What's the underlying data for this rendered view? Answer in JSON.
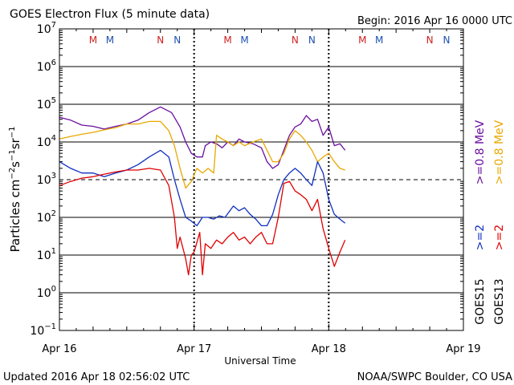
{
  "header": {
    "title": "GOES Electron Flux (5 minute data)",
    "begin": "Begin: 2016 Apr 16 0000 UTC"
  },
  "footer": {
    "updated": "Updated 2016 Apr 18 02:56:02 UTC",
    "credit": "NOAA/SWPC Boulder, CO USA"
  },
  "chart_data": {
    "type": "line",
    "title": "GOES Electron Flux (5 minute data)",
    "xlabel": "Universal Time",
    "ylabel": "Particles cm⁻²s⁻¹sr⁻¹",
    "y_scale": "log",
    "ylim": [
      0.1,
      10000000
    ],
    "xlim": [
      "2016-04-16 00:00",
      "2016-04-19 00:00"
    ],
    "x_ticks": [
      "Apr 16",
      "Apr 17",
      "Apr 18",
      "Apr 19"
    ],
    "y_ticks": [
      {
        "base": "10",
        "exp": "7"
      },
      {
        "base": "10",
        "exp": "6"
      },
      {
        "base": "10",
        "exp": "5"
      },
      {
        "base": "10",
        "exp": "4"
      },
      {
        "base": "10",
        "exp": "3"
      },
      {
        "base": "10",
        "exp": "2"
      },
      {
        "base": "10",
        "exp": "1"
      },
      {
        "base": "10",
        "exp": "0"
      },
      {
        "base": "10",
        "exp": "−1"
      }
    ],
    "grid": true,
    "threshold": {
      "value": 1000,
      "style": "dashed"
    },
    "day_markers": [
      "2016-04-17 00:00",
      "2016-04-18 00:00"
    ],
    "legend": {
      "placement": "right",
      "groups": [
        {
          "satellite": "GOES13",
          "entries": [
            {
              "label": ">=0.8 MeV",
              "color": "#e8a800"
            },
            {
              "label": ">=2",
              "color": "#e00000"
            }
          ]
        },
        {
          "satellite": "GOES15",
          "entries": [
            {
              "label": ">=0.8 MeV",
              "color": "#6a0fa0"
            },
            {
              "label": ">=2",
              "color": "#1030c0"
            }
          ]
        }
      ]
    },
    "mn_markers": [
      {
        "t": "2016-04-16 06:00",
        "label": "M",
        "color": "#d02020"
      },
      {
        "t": "2016-04-16 09:00",
        "label": "M",
        "color": "#1c4fb0"
      },
      {
        "t": "2016-04-16 18:00",
        "label": "N",
        "color": "#d02020"
      },
      {
        "t": "2016-04-16 21:00",
        "label": "N",
        "color": "#1c4fb0"
      },
      {
        "t": "2016-04-17 06:00",
        "label": "M",
        "color": "#d02020"
      },
      {
        "t": "2016-04-17 09:00",
        "label": "M",
        "color": "#1c4fb0"
      },
      {
        "t": "2016-04-17 18:00",
        "label": "N",
        "color": "#d02020"
      },
      {
        "t": "2016-04-17 21:00",
        "label": "N",
        "color": "#1c4fb0"
      },
      {
        "t": "2016-04-18 06:00",
        "label": "M",
        "color": "#d02020"
      },
      {
        "t": "2016-04-18 09:00",
        "label": "M",
        "color": "#1c4fb0"
      },
      {
        "t": "2016-04-18 18:00",
        "label": "N",
        "color": "#d02020"
      },
      {
        "t": "2016-04-18 21:00",
        "label": "N",
        "color": "#1c4fb0"
      }
    ],
    "series": [
      {
        "name": "GOES15 >=0.8 MeV",
        "color": "#6a0fa0",
        "points": [
          [
            "2016-04-16 00:00",
            45000
          ],
          [
            "2016-04-16 02:00",
            38000
          ],
          [
            "2016-04-16 04:00",
            28000
          ],
          [
            "2016-04-16 06:00",
            26000
          ],
          [
            "2016-04-16 08:00",
            22000
          ],
          [
            "2016-04-16 10:00",
            26000
          ],
          [
            "2016-04-16 12:00",
            30000
          ],
          [
            "2016-04-16 14:00",
            38000
          ],
          [
            "2016-04-16 16:00",
            60000
          ],
          [
            "2016-04-16 18:00",
            85000
          ],
          [
            "2016-04-16 20:00",
            60000
          ],
          [
            "2016-04-16 21:30",
            25000
          ],
          [
            "2016-04-16 22:30",
            10000
          ],
          [
            "2016-04-16 23:30",
            5000
          ],
          [
            "2016-04-17 00:30",
            4000
          ],
          [
            "2016-04-17 01:30",
            4000
          ],
          [
            "2016-04-17 02:00",
            8000
          ],
          [
            "2016-04-17 03:00",
            10000
          ],
          [
            "2016-04-17 04:00",
            9000
          ],
          [
            "2016-04-17 05:00",
            7000
          ],
          [
            "2016-04-17 06:00",
            10000
          ],
          [
            "2016-04-17 07:00",
            8000
          ],
          [
            "2016-04-17 08:00",
            12000
          ],
          [
            "2016-04-17 09:00",
            10000
          ],
          [
            "2016-04-17 10:30",
            9000
          ],
          [
            "2016-04-17 12:00",
            7000
          ],
          [
            "2016-04-17 13:00",
            3000
          ],
          [
            "2016-04-17 14:00",
            2000
          ],
          [
            "2016-04-17 15:00",
            2500
          ],
          [
            "2016-04-17 16:00",
            6000
          ],
          [
            "2016-04-17 17:00",
            15000
          ],
          [
            "2016-04-17 18:00",
            25000
          ],
          [
            "2016-04-17 19:00",
            30000
          ],
          [
            "2016-04-17 20:00",
            50000
          ],
          [
            "2016-04-17 21:00",
            35000
          ],
          [
            "2016-04-17 22:00",
            40000
          ],
          [
            "2016-04-17 23:00",
            15000
          ],
          [
            "2016-04-18 00:00",
            25000
          ],
          [
            "2016-04-18 01:00",
            8000
          ],
          [
            "2016-04-18 02:00",
            9000
          ],
          [
            "2016-04-18 02:55",
            6000
          ]
        ]
      },
      {
        "name": "GOES13 >=0.8 MeV",
        "color": "#e8a800",
        "points": [
          [
            "2016-04-16 00:00",
            12000
          ],
          [
            "2016-04-16 02:00",
            14000
          ],
          [
            "2016-04-16 04:00",
            16000
          ],
          [
            "2016-04-16 06:00",
            18000
          ],
          [
            "2016-04-16 08:00",
            21000
          ],
          [
            "2016-04-16 10:00",
            24000
          ],
          [
            "2016-04-16 12:00",
            30000
          ],
          [
            "2016-04-16 14:00",
            30000
          ],
          [
            "2016-04-16 16:00",
            35000
          ],
          [
            "2016-04-16 18:00",
            35000
          ],
          [
            "2016-04-16 19:30",
            20000
          ],
          [
            "2016-04-16 20:30",
            8000
          ],
          [
            "2016-04-16 21:30",
            2000
          ],
          [
            "2016-04-16 22:30",
            600
          ],
          [
            "2016-04-16 23:30",
            900
          ],
          [
            "2016-04-17 00:30",
            2000
          ],
          [
            "2016-04-17 01:30",
            1500
          ],
          [
            "2016-04-17 02:30",
            2000
          ],
          [
            "2016-04-17 03:30",
            1500
          ],
          [
            "2016-04-17 04:00",
            15000
          ],
          [
            "2016-04-17 05:00",
            12000
          ],
          [
            "2016-04-17 06:00",
            10000
          ],
          [
            "2016-04-17 07:00",
            8000
          ],
          [
            "2016-04-17 08:00",
            10000
          ],
          [
            "2016-04-17 09:00",
            8000
          ],
          [
            "2016-04-17 10:30",
            10000
          ],
          [
            "2016-04-17 12:00",
            12000
          ],
          [
            "2016-04-17 13:00",
            6000
          ],
          [
            "2016-04-17 14:00",
            3000
          ],
          [
            "2016-04-17 15:00",
            3000
          ],
          [
            "2016-04-17 16:00",
            5000
          ],
          [
            "2016-04-17 17:00",
            12000
          ],
          [
            "2016-04-17 18:00",
            20000
          ],
          [
            "2016-04-17 19:00",
            15000
          ],
          [
            "2016-04-17 20:00",
            10000
          ],
          [
            "2016-04-17 21:00",
            6000
          ],
          [
            "2016-04-17 22:00",
            3000
          ],
          [
            "2016-04-17 23:00",
            4000
          ],
          [
            "2016-04-18 00:00",
            5000
          ],
          [
            "2016-04-18 01:00",
            3000
          ],
          [
            "2016-04-18 02:00",
            2000
          ],
          [
            "2016-04-18 02:55",
            1800
          ]
        ]
      },
      {
        "name": "GOES15 >=2 MeV",
        "color": "#1030c0",
        "points": [
          [
            "2016-04-16 00:00",
            3000
          ],
          [
            "2016-04-16 02:00",
            2000
          ],
          [
            "2016-04-16 04:00",
            1500
          ],
          [
            "2016-04-16 06:00",
            1500
          ],
          [
            "2016-04-16 08:00",
            1200
          ],
          [
            "2016-04-16 10:00",
            1500
          ],
          [
            "2016-04-16 12:00",
            1800
          ],
          [
            "2016-04-16 14:00",
            2500
          ],
          [
            "2016-04-16 16:00",
            4000
          ],
          [
            "2016-04-16 18:00",
            6000
          ],
          [
            "2016-04-16 19:30",
            4000
          ],
          [
            "2016-04-16 20:30",
            1000
          ],
          [
            "2016-04-16 21:30",
            300
          ],
          [
            "2016-04-16 22:30",
            100
          ],
          [
            "2016-04-16 23:30",
            80
          ],
          [
            "2016-04-17 00:30",
            60
          ],
          [
            "2016-04-17 01:30",
            100
          ],
          [
            "2016-04-17 02:30",
            100
          ],
          [
            "2016-04-17 03:30",
            90
          ],
          [
            "2016-04-17 04:30",
            110
          ],
          [
            "2016-04-17 05:30",
            100
          ],
          [
            "2016-04-17 07:00",
            200
          ],
          [
            "2016-04-17 08:00",
            150
          ],
          [
            "2016-04-17 09:00",
            180
          ],
          [
            "2016-04-17 10:00",
            120
          ],
          [
            "2016-04-17 11:00",
            90
          ],
          [
            "2016-04-17 12:00",
            60
          ],
          [
            "2016-04-17 13:00",
            60
          ],
          [
            "2016-04-17 14:00",
            120
          ],
          [
            "2016-04-17 15:00",
            400
          ],
          [
            "2016-04-17 16:00",
            1000
          ],
          [
            "2016-04-17 17:00",
            1500
          ],
          [
            "2016-04-17 18:00",
            2000
          ],
          [
            "2016-04-17 19:00",
            1500
          ],
          [
            "2016-04-17 20:00",
            1000
          ],
          [
            "2016-04-17 21:00",
            700
          ],
          [
            "2016-04-17 22:00",
            3000
          ],
          [
            "2016-04-17 23:00",
            1500
          ],
          [
            "2016-04-18 00:00",
            300
          ],
          [
            "2016-04-18 01:00",
            120
          ],
          [
            "2016-04-18 02:00",
            90
          ],
          [
            "2016-04-18 02:55",
            70
          ]
        ]
      },
      {
        "name": "GOES13 >=2 MeV",
        "color": "#e00000",
        "points": [
          [
            "2016-04-16 00:00",
            700
          ],
          [
            "2016-04-16 02:00",
            900
          ],
          [
            "2016-04-16 04:00",
            1100
          ],
          [
            "2016-04-16 06:00",
            1200
          ],
          [
            "2016-04-16 08:00",
            1400
          ],
          [
            "2016-04-16 10:00",
            1600
          ],
          [
            "2016-04-16 12:00",
            1800
          ],
          [
            "2016-04-16 14:00",
            1800
          ],
          [
            "2016-04-16 16:00",
            2000
          ],
          [
            "2016-04-16 18:00",
            1800
          ],
          [
            "2016-04-16 19:30",
            700
          ],
          [
            "2016-04-16 20:30",
            100
          ],
          [
            "2016-04-16 21:00",
            15
          ],
          [
            "2016-04-16 21:30",
            30
          ],
          [
            "2016-04-16 22:30",
            8
          ],
          [
            "2016-04-16 23:00",
            3
          ],
          [
            "2016-04-16 23:30",
            10
          ],
          [
            "2016-04-17 00:00",
            12
          ],
          [
            "2016-04-17 01:00",
            40
          ],
          [
            "2016-04-17 01:30",
            3
          ],
          [
            "2016-04-17 02:00",
            20
          ],
          [
            "2016-04-17 03:00",
            15
          ],
          [
            "2016-04-17 04:00",
            25
          ],
          [
            "2016-04-17 05:00",
            20
          ],
          [
            "2016-04-17 06:00",
            30
          ],
          [
            "2016-04-17 07:00",
            40
          ],
          [
            "2016-04-17 08:00",
            25
          ],
          [
            "2016-04-17 09:00",
            30
          ],
          [
            "2016-04-17 10:00",
            20
          ],
          [
            "2016-04-17 11:00",
            30
          ],
          [
            "2016-04-17 12:00",
            40
          ],
          [
            "2016-04-17 13:00",
            20
          ],
          [
            "2016-04-17 14:00",
            20
          ],
          [
            "2016-04-17 15:00",
            100
          ],
          [
            "2016-04-17 16:00",
            800
          ],
          [
            "2016-04-17 17:00",
            900
          ],
          [
            "2016-04-17 18:00",
            500
          ],
          [
            "2016-04-17 19:00",
            400
          ],
          [
            "2016-04-17 20:00",
            300
          ],
          [
            "2016-04-17 21:00",
            150
          ],
          [
            "2016-04-17 22:00",
            300
          ],
          [
            "2016-04-17 23:00",
            50
          ],
          [
            "2016-04-18 00:00",
            15
          ],
          [
            "2016-04-18 01:00",
            5
          ],
          [
            "2016-04-18 02:00",
            12
          ],
          [
            "2016-04-18 02:55",
            25
          ]
        ]
      }
    ]
  }
}
